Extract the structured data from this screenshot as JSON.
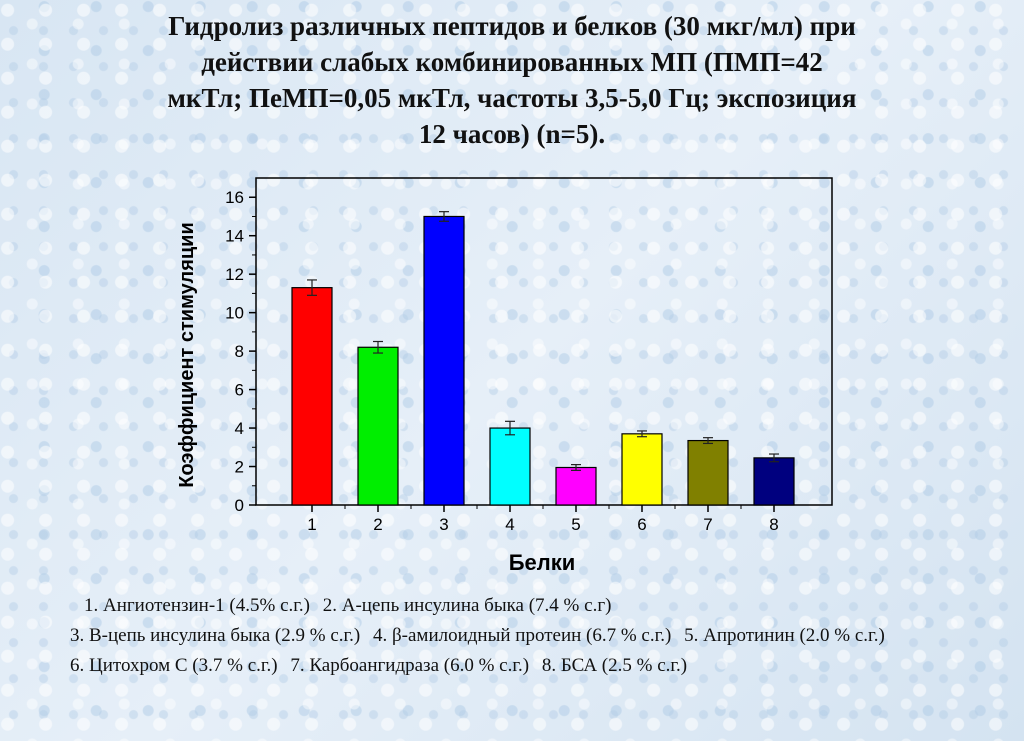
{
  "title_lines": [
    "Гидролиз различных пептидов и белков (30 мкг/мл) при",
    "действии слабых комбинированных МП (ПМП=42",
    "мкТл; ПеМП=0,05 мкТл, частоты 3,5-5,0 Гц; экспозиция",
    "12 часов) (n=5)."
  ],
  "chart_data": {
    "type": "bar",
    "categories": [
      "1",
      "2",
      "3",
      "4",
      "5",
      "6",
      "7",
      "8"
    ],
    "values": [
      11.3,
      8.2,
      15.0,
      4.0,
      1.95,
      3.7,
      3.35,
      2.45
    ],
    "errors": [
      0.4,
      0.3,
      0.25,
      0.35,
      0.15,
      0.15,
      0.15,
      0.2
    ],
    "colors": [
      "#ff0000",
      "#00ee00",
      "#0000ff",
      "#00ffff",
      "#ff00ff",
      "#ffff00",
      "#808000",
      "#00007f"
    ],
    "xlabel": "Белки",
    "ylabel": "Коэффициент стимуляции",
    "ylim": [
      0,
      17
    ],
    "yticks": [
      "0",
      "2",
      "4",
      "6",
      "8",
      "10",
      "12",
      "14",
      "16"
    ],
    "grid": false
  },
  "footnote": {
    "items": [
      "1. Ангиотензин-1 (4.5% с.г.)",
      "2. А-цепь инсулина быка (7.4 % с.г)",
      "3. В-цепь инсулина быка (2.9 % с.г.)",
      "4. β-амилоидный протеин (6.7 % с.г.)",
      "5. Апротинин (2.0 % с.г.)",
      "6. Цитохром С (3.7 % с.г.)",
      "7. Карбоангидраза (6.0 % с.г.)",
      "8. БСА  (2.5 % с.г.)"
    ]
  }
}
